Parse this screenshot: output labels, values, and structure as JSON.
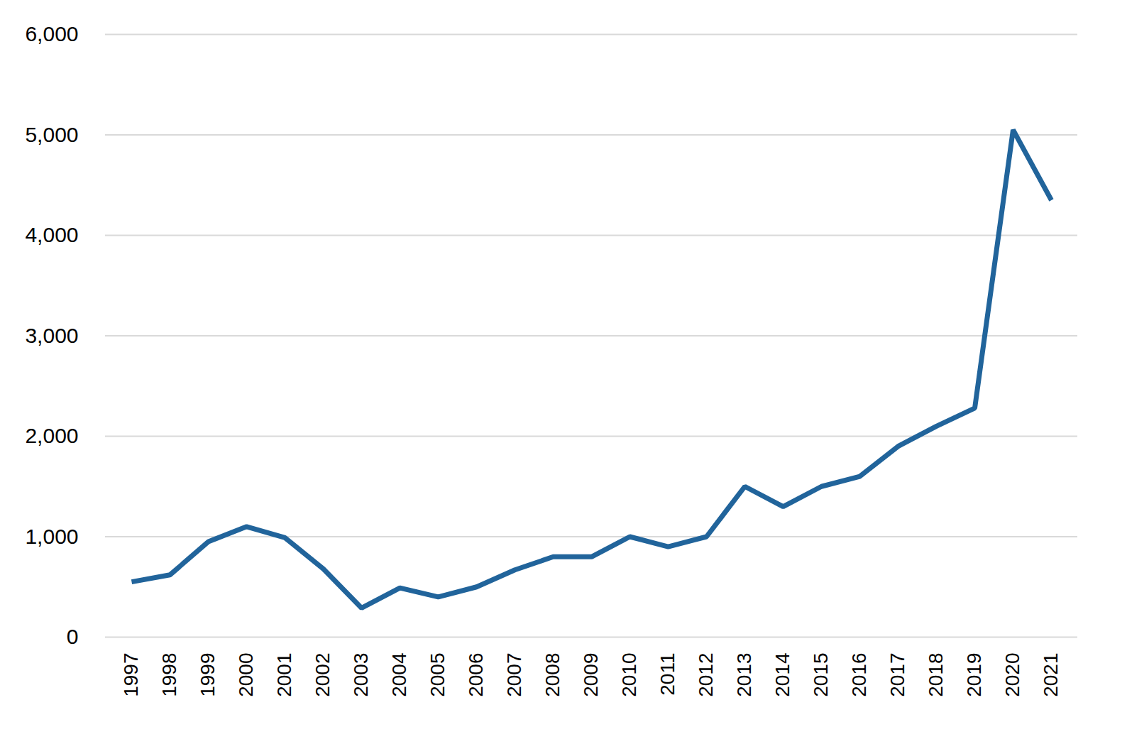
{
  "chart_data": {
    "type": "line",
    "x": [
      "1997",
      "1998",
      "1999",
      "2000",
      "2001",
      "2002",
      "2003",
      "2004",
      "2005",
      "2006",
      "2007",
      "2008",
      "2009",
      "2010",
      "2011",
      "2012",
      "2013",
      "2014",
      "2015",
      "2016",
      "2017",
      "2018",
      "2019",
      "2020",
      "2021"
    ],
    "values": [
      550,
      620,
      950,
      1100,
      990,
      680,
      290,
      490,
      400,
      500,
      670,
      800,
      800,
      1000,
      900,
      1000,
      1500,
      1300,
      1500,
      1600,
      1900,
      2100,
      2280,
      5050,
      4350
    ],
    "color": "#21649b",
    "ylim": [
      0,
      6000
    ],
    "yticks": [
      0,
      1000,
      2000,
      3000,
      4000,
      5000,
      6000
    ],
    "grid": true
  }
}
